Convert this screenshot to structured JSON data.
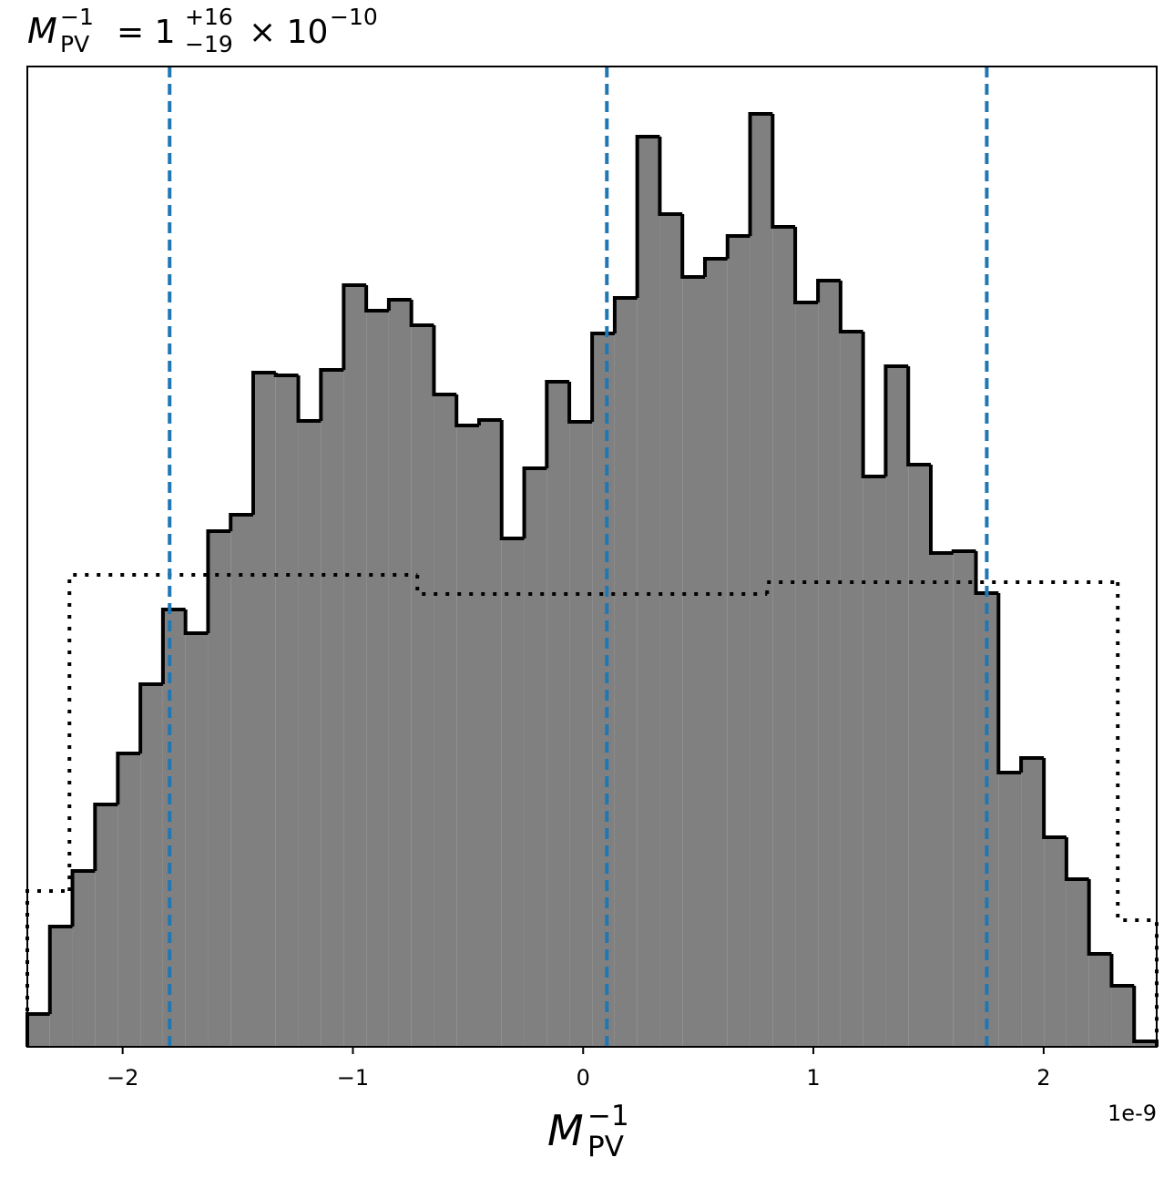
{
  "chart_data": {
    "type": "histogram",
    "title": {
      "symbol": "M",
      "sup": "−1",
      "sub": "PV",
      "eq": "= 1",
      "plus": "+16",
      "minus": "−19",
      "times": "× 10",
      "exp": "−10"
    },
    "xlabel": {
      "symbol": "M",
      "sup": "−1",
      "sub": "PV"
    },
    "x_offset_label": "1e-9",
    "xlim": [
      -2.414,
      2.491
    ],
    "ylim": [
      0,
      107.6
    ],
    "xticks": [
      {
        "value": -2,
        "label": "−2"
      },
      {
        "value": -1,
        "label": "−1"
      },
      0,
      1,
      2
    ],
    "series": [
      {
        "color": "#808080",
        "edgecolor": "#000000",
        "bins": [
          -2.414,
          -2.316,
          -2.218,
          -2.12,
          -2.021,
          -1.923,
          -1.825,
          -1.727,
          -1.629,
          -1.531,
          -1.433,
          -1.335,
          -1.237,
          -1.139,
          -1.04,
          -0.942,
          -0.844,
          -0.746,
          -0.648,
          -0.55,
          -0.452,
          -0.354,
          -0.256,
          -0.158,
          -0.06,
          0.039,
          0.137,
          0.235,
          0.333,
          0.431,
          0.529,
          0.627,
          0.725,
          0.823,
          0.921,
          1.02,
          1.118,
          1.216,
          1.314,
          1.412,
          1.51,
          1.608,
          1.706,
          1.804,
          1.902,
          2.001,
          2.099,
          2.197,
          2.295,
          2.393,
          2.491
        ],
        "values": [
          3.6,
          13.2,
          19.3,
          26.6,
          32.2,
          39.8,
          48.0,
          45.4,
          56.6,
          58.4,
          74.0,
          73.7,
          68.7,
          74.3,
          83.6,
          80.8,
          82.0,
          79.2,
          71.6,
          68.2,
          68.8,
          55.8,
          63.5,
          73.0,
          68.6,
          78.3,
          82.2,
          99.9,
          91.4,
          84.5,
          86.5,
          89.0,
          102.4,
          90.0,
          81.7,
          84.1,
          78.5,
          62.6,
          74.7,
          63.9,
          54.2,
          54.4,
          49.8,
          30.1,
          31.7,
          23.0,
          18.4,
          10.2,
          6.7,
          0.6
        ]
      },
      {
        "color": "#000000",
        "linestyle": "dotted",
        "bins": [
          -2.414,
          -2.231,
          -0.72,
          0.799,
          2.322,
          2.491
        ],
        "values": [
          17.1,
          51.8,
          49.7,
          51.0,
          13.9
        ]
      }
    ],
    "vlines": {
      "values": [
        -1.796,
        0.103,
        1.753
      ],
      "color": "#1f77b4",
      "linestyle": "dashed"
    }
  }
}
